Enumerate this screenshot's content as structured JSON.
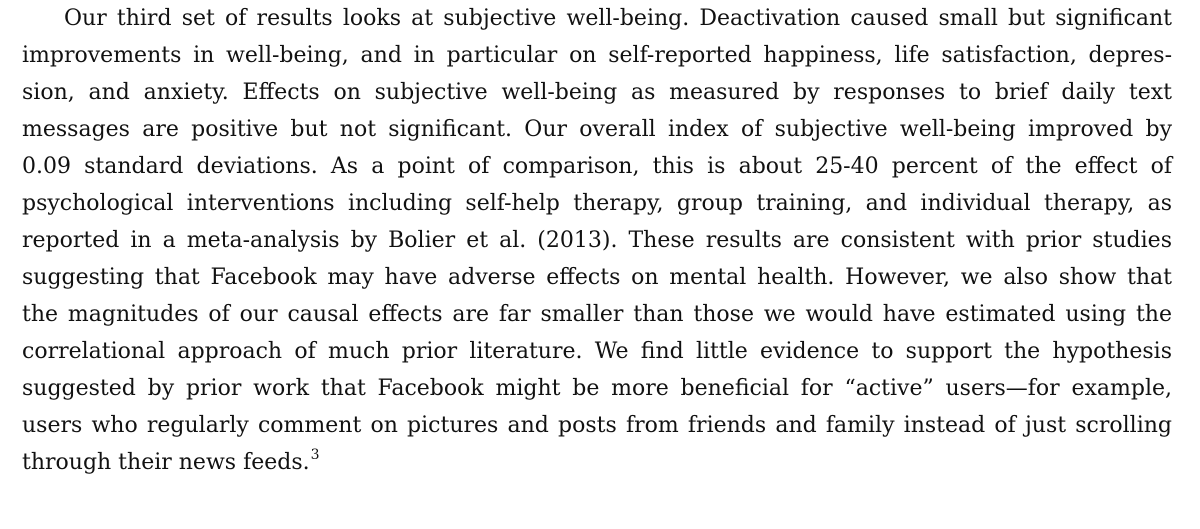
{
  "paragraph": {
    "lines": [
      "Our third set of results looks at subjective well-being. Deactivation caused small but significant",
      "improvements in well-being, and in particular on self-reported happiness, life satisfaction, depres-",
      "sion, and anxiety. Effects on subjective well-being as measured by responses to brief daily text",
      "messages are positive but not significant. Our overall index of subjective well-being improved by",
      "0.09 standard deviations. As a point of comparison, this is about 25-40 percent of the effect of",
      "psychological interventions including self-help therapy, group training, and individual therapy, as",
      "reported in a meta-analysis by Bolier et al. (2013). These results are consistent with prior studies",
      "suggesting that Facebook may have adverse effects on mental health. However, we also show that",
      "the magnitudes of our causal effects are far smaller than those we would have estimated using the",
      "correlational approach of much prior literature. We find little evidence to support the hypothesis",
      "suggested by prior work that Facebook might be more beneficial for “active” users—for example,",
      "users who regularly comment on pictures and posts from friends and family instead of just scrolling",
      "through their news feeds."
    ],
    "footnote_marker": "3"
  }
}
